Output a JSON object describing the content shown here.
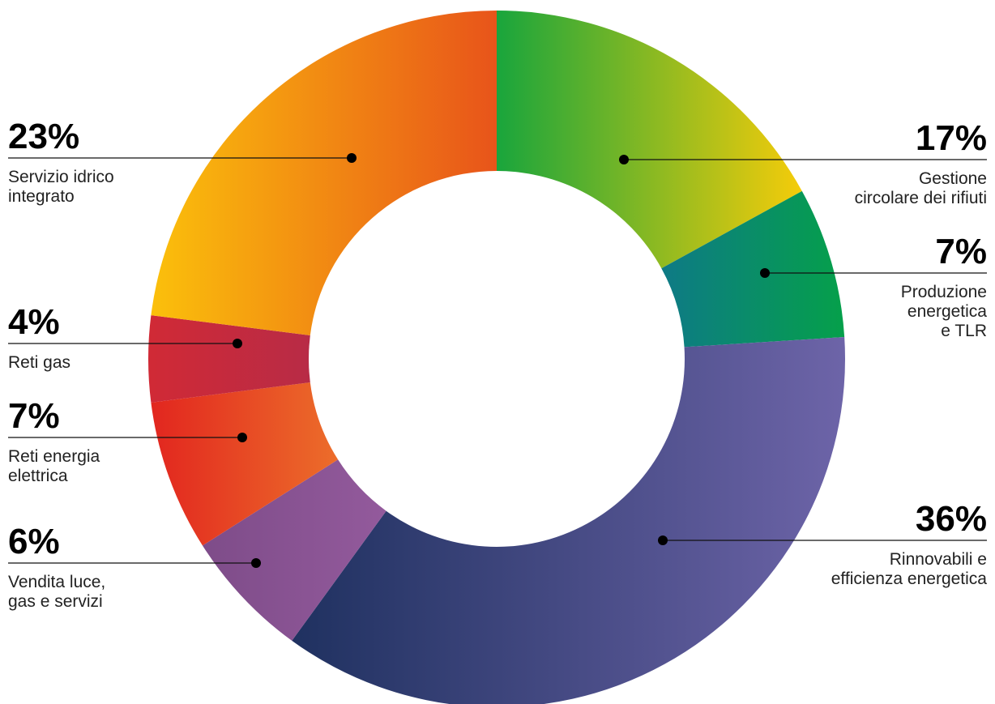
{
  "chart_data": {
    "type": "pie",
    "variant": "donut",
    "title": "",
    "slices": [
      {
        "label": "Gestione circolare dei rifiuti",
        "value": 17,
        "value_label": "17%",
        "label_lines": [
          "Gestione",
          "circolare dei rifiuti"
        ],
        "color_start": "#19a53c",
        "color_end": "#f5cc0a"
      },
      {
        "label": "Produzione energetica e TLR",
        "value": 7,
        "value_label": "7%",
        "label_lines": [
          "Produzione",
          "energetica",
          "e TLR"
        ],
        "color_start": "#0e7a86",
        "color_end": "#05a04a"
      },
      {
        "label": "Rinnovabili e efficienza energetica",
        "value": 36,
        "value_label": "36%",
        "label_lines": [
          "Rinnovabili e",
          "efficienza energetica"
        ],
        "color_start": "#1f3160",
        "color_end": "#6d64a8"
      },
      {
        "label": "Vendita luce, gas e servizi",
        "value": 6,
        "value_label": "6%",
        "label_lines": [
          "Vendita luce,",
          "gas e servizi"
        ],
        "color_start": "#7e4c89",
        "color_end": "#935a9c"
      },
      {
        "label": "Reti energia elettrica",
        "value": 7,
        "value_label": "7%",
        "label_lines": [
          "Reti energia",
          "elettrica"
        ],
        "color_start": "#e2261f",
        "color_end": "#ec6d2a"
      },
      {
        "label": "Reti gas",
        "value": 4,
        "value_label": "4%",
        "label_lines": [
          "Reti gas"
        ],
        "color_start": "#d02a36",
        "color_end": "#b82b46"
      },
      {
        "label": "Servizio idrico integrato",
        "value": 23,
        "value_label": "23%",
        "label_lines": [
          "Servizio idrico",
          "integrato"
        ],
        "color_start": "#fbc00b",
        "color_end": "#e8541a"
      }
    ]
  }
}
